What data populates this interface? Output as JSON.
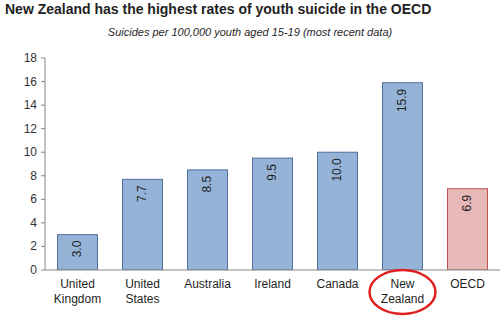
{
  "chart_data": {
    "type": "bar",
    "title": "New Zealand has the highest rates of youth suicide in the OECD",
    "subtitle": "Suicides per 100,000 youth aged 15-19 (most recent data)",
    "categories": [
      "United Kingdom",
      "United States",
      "Australia",
      "Ireland",
      "Canada",
      "New Zealand",
      "OECD"
    ],
    "values": [
      3.0,
      7.7,
      8.5,
      9.5,
      10.0,
      15.9,
      6.9
    ],
    "value_labels": [
      "3.0",
      "7.7",
      "8.5",
      "9.5",
      "10.0",
      "15.9",
      "6.9"
    ],
    "colors": [
      "#95b3d7",
      "#95b3d7",
      "#95b3d7",
      "#95b3d7",
      "#95b3d7",
      "#95b3d7",
      "#e6b9b8"
    ],
    "ylim": [
      0,
      18
    ],
    "yticks": [
      0,
      2,
      4,
      6,
      8,
      10,
      12,
      14,
      16,
      18
    ],
    "grid": false,
    "data_labels": true
  }
}
